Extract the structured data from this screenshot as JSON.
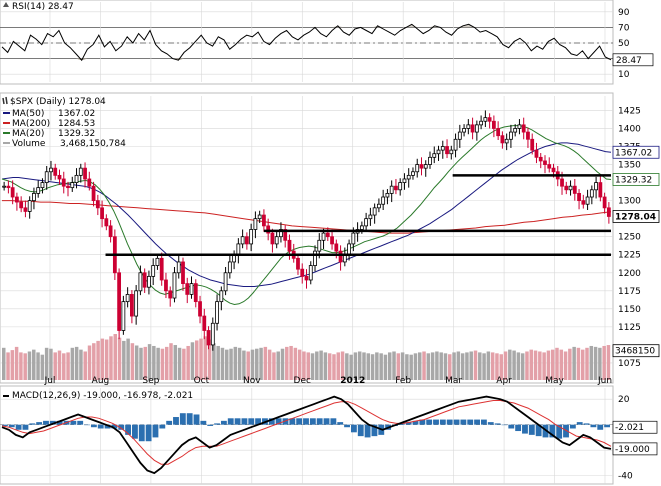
{
  "colors": {
    "price_up": "#000000",
    "price_down": "#cc0033",
    "ma50": "#1a1a80",
    "ma200": "#cc2222",
    "ma20": "#2b7a2b",
    "volume_up": "#a8a8a8",
    "volume_down": "#e3a0a8",
    "macd_line": "#000000",
    "macd_signal": "#dd3333",
    "macd_hist": "#2b6fb0",
    "rsi_line": "#000000",
    "rsi_fill": "#a39a8a",
    "grid": "#d8d8d8",
    "support_line": "#000000"
  },
  "chart_data": [
    {
      "type": "line",
      "panel": "rsi",
      "label_text": "RSI(14) 28.47",
      "ylim": [
        0,
        100
      ],
      "yticks": [
        "90",
        "70",
        "50",
        "30",
        "10"
      ],
      "reference_levels": [
        70,
        50,
        30
      ],
      "last_value_label": "28.47",
      "icon": "rsi-indicator-icon",
      "values": [
        45,
        38,
        52,
        46,
        40,
        60,
        55,
        48,
        62,
        58,
        66,
        50,
        44,
        36,
        28,
        42,
        48,
        60,
        45,
        52,
        40,
        46,
        58,
        50,
        62,
        54,
        66,
        48,
        40,
        36,
        30,
        28,
        38,
        44,
        52,
        60,
        50,
        46,
        58,
        54,
        42,
        48,
        55,
        60,
        58,
        64,
        52,
        48,
        56,
        62,
        66,
        58,
        54,
        60,
        64,
        70,
        62,
        58,
        66,
        72,
        64,
        60,
        68,
        70,
        66,
        62,
        72,
        68,
        64,
        60,
        66,
        70,
        74,
        68,
        62,
        66,
        72,
        70,
        64,
        60,
        68,
        72,
        74,
        70,
        64,
        66,
        62,
        58,
        48,
        44,
        52,
        56,
        50,
        40,
        46,
        42,
        52,
        56,
        48,
        44,
        36,
        34,
        40,
        30,
        38,
        46,
        32,
        28.47
      ]
    },
    {
      "type": "candlestick",
      "panel": "price",
      "label_text": "$SPX (Daily) 1278.04",
      "ylim": [
        1050,
        1445
      ],
      "yticks": [
        "1425",
        "1400",
        "1375",
        "1350",
        "1300",
        "1250",
        "1225",
        "1200",
        "1175",
        "1150",
        "1125",
        "1075"
      ],
      "x_labels": [
        "Jul",
        "Aug",
        "Sep",
        "Oct",
        "Nov",
        "Dec",
        "2012",
        "Feb",
        "Mar",
        "Apr",
        "May",
        "Jun"
      ],
      "x_label_bold": "2012",
      "legend": [
        {
          "name": "MA(50)",
          "value": "1367.02",
          "color_key": "ma50"
        },
        {
          "name": "MA(200)",
          "value": "1284.53",
          "color_key": "ma200"
        },
        {
          "name": "MA(20)",
          "value": "1329.32",
          "color_key": "ma20"
        },
        {
          "name": "Volume",
          "value": "3,468,150,784",
          "color_key": "volume_up"
        }
      ],
      "price_tags": [
        {
          "value": "1367.02",
          "y": 1367.02,
          "color_key": "ma50"
        },
        {
          "value": "1329.32",
          "y": 1329.32,
          "color_key": "ma20"
        },
        {
          "value": "1278.04",
          "y": 1278.04,
          "color_key": "price_up",
          "bold": true
        },
        {
          "value": "3468150",
          "y": 1092,
          "color_key": "price_up"
        }
      ],
      "horizontal_lines": [
        {
          "y": 1335,
          "x_start": 0.74,
          "x_end": 1.0
        },
        {
          "y": 1258,
          "x_start": 0.43,
          "x_end": 1.0
        },
        {
          "y": 1225,
          "x_start": 0.17,
          "x_end": 1.0
        }
      ],
      "closes": [
        1320,
        1318,
        1305,
        1298,
        1290,
        1285,
        1300,
        1310,
        1318,
        1325,
        1340,
        1345,
        1335,
        1330,
        1320,
        1318,
        1325,
        1335,
        1345,
        1330,
        1320,
        1300,
        1290,
        1275,
        1265,
        1250,
        1200,
        1120,
        1160,
        1170,
        1140,
        1175,
        1200,
        1180,
        1195,
        1210,
        1220,
        1190,
        1175,
        1165,
        1200,
        1215,
        1185,
        1170,
        1185,
        1160,
        1140,
        1120,
        1100,
        1130,
        1160,
        1175,
        1200,
        1215,
        1225,
        1240,
        1250,
        1240,
        1260,
        1275,
        1280,
        1265,
        1255,
        1240,
        1250,
        1260,
        1245,
        1230,
        1220,
        1205,
        1195,
        1190,
        1210,
        1230,
        1245,
        1255,
        1250,
        1240,
        1230,
        1215,
        1225,
        1240,
        1255,
        1260,
        1265,
        1275,
        1280,
        1290,
        1295,
        1305,
        1310,
        1320,
        1315,
        1325,
        1330,
        1335,
        1340,
        1350,
        1345,
        1350,
        1360,
        1365,
        1370,
        1375,
        1365,
        1370,
        1385,
        1395,
        1400,
        1405,
        1395,
        1405,
        1410,
        1415,
        1410,
        1400,
        1390,
        1380,
        1385,
        1395,
        1400,
        1405,
        1395,
        1385,
        1370,
        1360,
        1355,
        1350,
        1345,
        1340,
        1330,
        1320,
        1315,
        1320,
        1310,
        1300,
        1295,
        1305,
        1315,
        1325,
        1305,
        1290,
        1278.04
      ],
      "ma20": [
        1330,
        1328,
        1326,
        1322,
        1318,
        1315,
        1313,
        1312,
        1313,
        1315,
        1318,
        1320,
        1322,
        1323,
        1324,
        1325,
        1326,
        1327,
        1328,
        1326,
        1322,
        1316,
        1308,
        1298,
        1286,
        1272,
        1256,
        1240,
        1226,
        1212,
        1200,
        1190,
        1182,
        1176,
        1172,
        1170,
        1172,
        1174,
        1176,
        1178,
        1180,
        1182,
        1183,
        1182,
        1180,
        1177,
        1173,
        1168,
        1162,
        1158,
        1156,
        1157,
        1160,
        1165,
        1172,
        1180,
        1188,
        1196,
        1204,
        1212,
        1220,
        1226,
        1230,
        1233,
        1235,
        1236,
        1237,
        1236,
        1234,
        1232,
        1230,
        1228,
        1228,
        1229,
        1231,
        1234,
        1237,
        1240,
        1243,
        1245,
        1247,
        1249,
        1251,
        1254,
        1258,
        1262,
        1268,
        1274,
        1280,
        1287,
        1294,
        1302,
        1310,
        1318,
        1325,
        1332,
        1340,
        1347,
        1354,
        1360,
        1366,
        1372,
        1378,
        1384,
        1389,
        1393,
        1397,
        1400,
        1402,
        1403,
        1404,
        1404,
        1403,
        1401,
        1398,
        1394,
        1390,
        1386,
        1383,
        1380,
        1378,
        1376,
        1373,
        1369,
        1364,
        1358,
        1352,
        1346,
        1340,
        1335,
        1330,
        1329.32
      ],
      "ma50": [
        1330,
        1331,
        1332,
        1332,
        1331,
        1330,
        1329,
        1328,
        1327,
        1326,
        1325,
        1324,
        1323,
        1322,
        1321,
        1320,
        1318,
        1315,
        1311,
        1306,
        1300,
        1294,
        1287,
        1280,
        1272,
        1264,
        1256,
        1248,
        1240,
        1233,
        1226,
        1220,
        1214,
        1209,
        1204,
        1200,
        1196,
        1193,
        1190,
        1188,
        1186,
        1184,
        1183,
        1182,
        1181,
        1181,
        1181,
        1182,
        1183,
        1184,
        1186,
        1188,
        1190,
        1192,
        1194,
        1196,
        1198,
        1201,
        1204,
        1207,
        1210,
        1213,
        1216,
        1219,
        1222,
        1225,
        1228,
        1231,
        1234,
        1237,
        1240,
        1243,
        1246,
        1249,
        1252,
        1256,
        1260,
        1264,
        1268,
        1273,
        1278,
        1283,
        1288,
        1294,
        1300,
        1306,
        1312,
        1318,
        1324,
        1330,
        1336,
        1342,
        1347,
        1352,
        1357,
        1361,
        1365,
        1369,
        1372,
        1375,
        1377,
        1379,
        1380,
        1380,
        1379,
        1378,
        1376,
        1374,
        1372,
        1370,
        1368,
        1367.02
      ],
      "ma200": [
        1300,
        1300,
        1299,
        1299,
        1298,
        1298,
        1297,
        1296,
        1296,
        1295,
        1294,
        1293,
        1292,
        1291,
        1290,
        1289,
        1288,
        1287,
        1286,
        1285,
        1284,
        1283,
        1281,
        1279,
        1277,
        1275,
        1273,
        1271,
        1269,
        1267,
        1265,
        1264,
        1263,
        1262,
        1261,
        1260,
        1259,
        1258,
        1257,
        1256,
        1255,
        1255,
        1255,
        1256,
        1257,
        1258,
        1259,
        1260,
        1261,
        1262,
        1264,
        1265,
        1266,
        1268,
        1270,
        1271,
        1273,
        1275,
        1277,
        1278,
        1280,
        1281,
        1283,
        1284.53
      ],
      "volume": [
        0.7,
        0.6,
        0.65,
        0.72,
        0.6,
        0.58,
        0.62,
        0.66,
        0.6,
        0.55,
        0.7,
        0.68,
        0.6,
        0.64,
        0.58,
        0.6,
        0.7,
        0.72,
        0.66,
        0.62,
        0.75,
        0.8,
        0.85,
        0.9,
        0.88,
        0.95,
        1.0,
        0.92,
        0.85,
        0.9,
        0.8,
        0.75,
        0.7,
        0.72,
        0.78,
        0.74,
        0.7,
        0.68,
        0.72,
        0.8,
        0.76,
        0.7,
        0.68,
        0.74,
        0.82,
        0.86,
        0.9,
        0.95,
        0.88,
        0.8,
        0.74,
        0.7,
        0.66,
        0.68,
        0.72,
        0.7,
        0.64,
        0.62,
        0.66,
        0.68,
        0.7,
        0.72,
        0.66,
        0.6,
        0.62,
        0.68,
        0.72,
        0.74,
        0.7,
        0.66,
        0.62,
        0.6,
        0.58,
        0.62,
        0.64,
        0.6,
        0.58,
        0.56,
        0.6,
        0.62,
        0.58,
        0.55,
        0.6,
        0.62,
        0.6,
        0.58,
        0.56,
        0.6,
        0.58,
        0.55,
        0.6,
        0.62,
        0.58,
        0.6,
        0.56,
        0.55,
        0.58,
        0.6,
        0.62,
        0.58,
        0.6,
        0.62,
        0.6,
        0.58,
        0.56,
        0.6,
        0.62,
        0.58,
        0.6,
        0.62,
        0.64,
        0.6,
        0.58,
        0.62,
        0.6,
        0.58,
        0.56,
        0.62,
        0.66,
        0.64,
        0.6,
        0.58,
        0.62,
        0.66,
        0.64,
        0.62,
        0.6,
        0.64,
        0.66,
        0.7,
        0.66,
        0.62,
        0.68,
        0.72,
        0.7,
        0.66,
        0.7,
        0.74,
        0.72,
        0.7,
        0.74,
        0.76
      ]
    },
    {
      "type": "line",
      "panel": "macd",
      "label_text": "MACD(12,26,9) -19.000, -16.978, -2.021",
      "ylim": [
        -45,
        28
      ],
      "yticks": [
        "20",
        "-20",
        "-40"
      ],
      "value_tags": [
        {
          "value": "-2.021",
          "y": -2.021
        },
        {
          "value": "-19.000",
          "y": -19.0
        }
      ],
      "macd": [
        -2,
        -4,
        -8,
        -10,
        -6,
        -4,
        -2,
        0,
        2,
        4,
        6,
        8,
        6,
        4,
        2,
        0,
        -2,
        -6,
        -14,
        -22,
        -30,
        -36,
        -38,
        -34,
        -28,
        -22,
        -16,
        -12,
        -10,
        -14,
        -18,
        -16,
        -12,
        -8,
        -6,
        -4,
        -2,
        0,
        2,
        4,
        6,
        8,
        10,
        12,
        14,
        16,
        18,
        20,
        22,
        20,
        16,
        10,
        4,
        0,
        -2,
        -4,
        -2,
        0,
        2,
        4,
        6,
        8,
        10,
        12,
        14,
        16,
        18,
        19,
        20,
        21,
        22,
        21,
        20,
        18,
        14,
        10,
        6,
        2,
        -2,
        -6,
        -10,
        -14,
        -16,
        -12,
        -8,
        -10,
        -14,
        -18,
        -19
      ],
      "signal": [
        -1,
        -2,
        -4,
        -6,
        -7,
        -6,
        -5,
        -3,
        -1,
        1,
        3,
        5,
        6,
        6,
        5,
        3,
        1,
        -2,
        -6,
        -11,
        -17,
        -23,
        -28,
        -31,
        -31,
        -28,
        -25,
        -21,
        -18,
        -17,
        -17,
        -17,
        -15,
        -13,
        -11,
        -9,
        -7,
        -5,
        -3,
        -1,
        1,
        3,
        5,
        7,
        9,
        11,
        13,
        15,
        17,
        18,
        18,
        16,
        13,
        10,
        7,
        4,
        2,
        1,
        1,
        2,
        3,
        4,
        6,
        8,
        10,
        12,
        14,
        15,
        16,
        17,
        18,
        19,
        19,
        18,
        17,
        15,
        13,
        10,
        7,
        4,
        0,
        -3,
        -6,
        -9,
        -10,
        -11,
        -12,
        -14,
        -16.978
      ]
    }
  ]
}
